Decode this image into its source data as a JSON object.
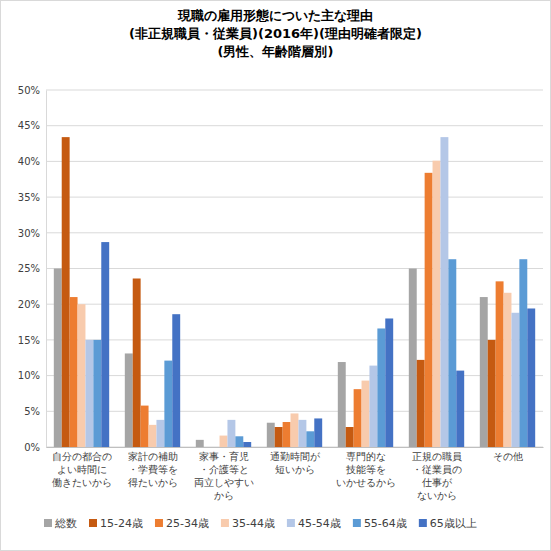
{
  "chart_data": {
    "type": "bar",
    "title": "現職の雇用形態についた主な理由\n(非正規職員・従業員)(2016年)(理由明確者限定)\n(男性、年齢階層別)",
    "categories": [
      "自分の都合の\nよい時間に\n働きたいから",
      "家計の補助\n・学費等を\n得たいから",
      "家事・育児\n・介護等と\n両立しやすい\nから",
      "通勤時間が\n短いから",
      "専門的な\n技能等を\nいかせるから",
      "正規の職員\n・従業員の\n仕事が\nないから",
      "その他"
    ],
    "series": [
      {
        "name": "総数",
        "color": "#a5a5a5",
        "values": [
          25.0,
          13.1,
          1.0,
          3.4,
          11.9,
          25.0,
          21.0
        ]
      },
      {
        "name": "15-24歳",
        "color": "#c55a11",
        "values": [
          43.4,
          23.6,
          0.0,
          2.8,
          2.8,
          12.2,
          15.0
        ]
      },
      {
        "name": "25-34歳",
        "color": "#ed7d31",
        "values": [
          21.0,
          5.8,
          0.0,
          3.5,
          8.1,
          38.4,
          23.2
        ]
      },
      {
        "name": "35-44歳",
        "color": "#f8cbad",
        "values": [
          20.0,
          3.1,
          1.6,
          4.7,
          9.3,
          40.1,
          21.6
        ]
      },
      {
        "name": "45-54歳",
        "color": "#b4c7e7",
        "values": [
          15.0,
          3.8,
          3.8,
          3.8,
          11.4,
          43.4,
          18.8
        ]
      },
      {
        "name": "55-64歳",
        "color": "#5b9bd5",
        "values": [
          15.0,
          12.1,
          1.5,
          2.2,
          16.6,
          26.3,
          26.3
        ]
      },
      {
        "name": "65歳以上",
        "color": "#4472c4",
        "values": [
          28.7,
          18.6,
          0.7,
          4.0,
          18.0,
          10.7,
          19.4
        ]
      }
    ],
    "ylim": [
      0,
      50
    ],
    "yticks": [
      {
        "value": 0,
        "label": "0%"
      },
      {
        "value": 5,
        "label": "5%"
      },
      {
        "value": 10,
        "label": "10%"
      },
      {
        "value": 15,
        "label": "15%"
      },
      {
        "value": 20,
        "label": "20%"
      },
      {
        "value": 25,
        "label": "25%"
      },
      {
        "value": 30,
        "label": "30%"
      },
      {
        "value": 35,
        "label": "35%"
      },
      {
        "value": 40,
        "label": "40%"
      },
      {
        "value": 45,
        "label": "45%"
      },
      {
        "value": 50,
        "label": "50%"
      }
    ],
    "grid": true,
    "legend": "bottom"
  }
}
